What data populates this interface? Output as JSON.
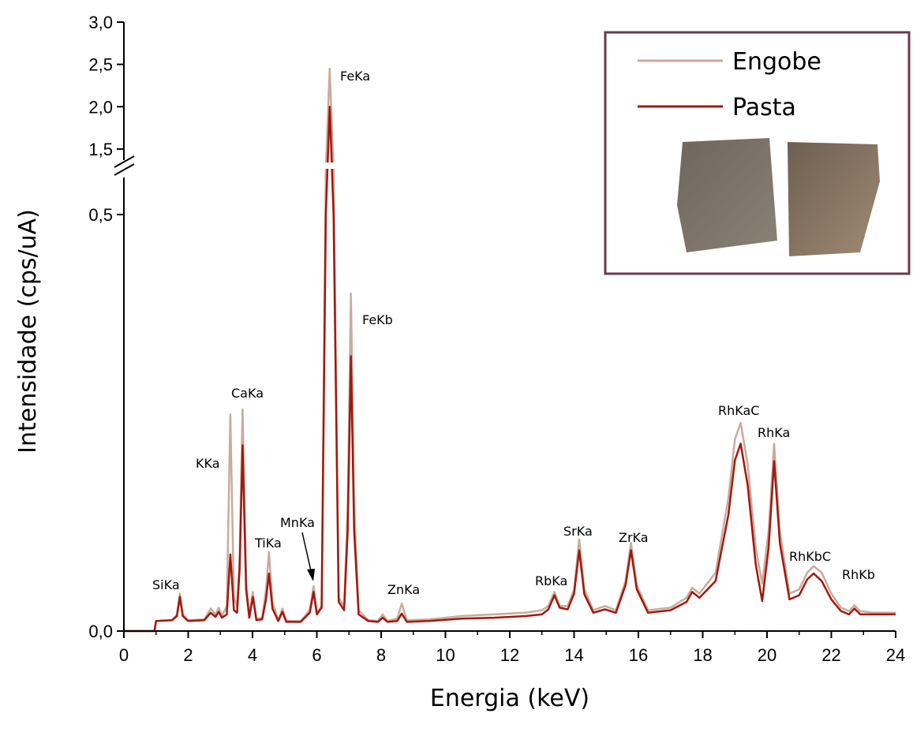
{
  "chart_data": {
    "type": "line",
    "xlabel": "Energia (keV)",
    "ylabel": "Intensidade (cps/uA)",
    "xlim": [
      0,
      24
    ],
    "xticks": [
      0,
      2,
      4,
      6,
      8,
      10,
      12,
      14,
      16,
      18,
      20,
      22,
      24
    ],
    "ylim": [
      0,
      3.0
    ],
    "ybreak": [
      0.554,
      1.35
    ],
    "yticks": [
      {
        "value": 0,
        "label": "0,0"
      },
      {
        "value": 0.5,
        "label": "0,5"
      },
      {
        "value": 1.5,
        "label": "1,5"
      },
      {
        "value": 2.0,
        "label": "2,0"
      },
      {
        "value": 2.5,
        "label": "2,5"
      },
      {
        "value": 3.0,
        "label": "3,0"
      }
    ],
    "annotations": [
      "SiKa",
      "KKa",
      "CaKa",
      "TiKa",
      "MnKa",
      "FeKa",
      "FeKb",
      "ZnKa",
      "RbKa",
      "SrKa",
      "ZrKa",
      "RhKaC",
      "RhKa",
      "RhKbC",
      "RhKb"
    ],
    "x": [
      0,
      0.95,
      1.0,
      1.5,
      1.65,
      1.74,
      1.83,
      2.0,
      2.5,
      2.7,
      2.85,
      2.95,
      3.05,
      3.2,
      3.31,
      3.42,
      3.52,
      3.6,
      3.69,
      3.8,
      3.9,
      4.01,
      4.12,
      4.3,
      4.42,
      4.51,
      4.62,
      4.8,
      4.93,
      5.05,
      5.5,
      5.78,
      5.9,
      6.0,
      6.15,
      6.28,
      6.4,
      6.52,
      6.68,
      6.85,
      6.96,
      7.06,
      7.16,
      7.3,
      7.6,
      7.9,
      8.05,
      8.2,
      8.5,
      8.64,
      8.8,
      9.5,
      10.5,
      11.5,
      12.5,
      13.0,
      13.2,
      13.39,
      13.55,
      13.8,
      14.0,
      14.16,
      14.32,
      14.6,
      14.96,
      15.3,
      15.6,
      15.77,
      15.95,
      16.3,
      17.0,
      17.5,
      17.67,
      17.9,
      18.4,
      18.8,
      19.0,
      19.18,
      19.4,
      19.65,
      19.85,
      20.05,
      20.22,
      20.4,
      20.7,
      21.0,
      21.25,
      21.45,
      21.7,
      22.0,
      22.3,
      22.55,
      22.72,
      22.9,
      23.3,
      24
    ],
    "series": [
      {
        "name": "Engobe",
        "color": "#c9ab9c",
        "values": [
          0,
          0,
          0.012,
          0.013,
          0.02,
          0.045,
          0.02,
          0.013,
          0.014,
          0.027,
          0.02,
          0.028,
          0.018,
          0.03,
          0.26,
          0.04,
          0.03,
          0.09,
          0.266,
          0.06,
          0.018,
          0.047,
          0.015,
          0.016,
          0.05,
          0.095,
          0.035,
          0.013,
          0.027,
          0.012,
          0.012,
          0.025,
          0.054,
          0.022,
          0.03,
          0.6,
          2.45,
          0.6,
          0.04,
          0.03,
          0.15,
          0.405,
          0.15,
          0.025,
          0.013,
          0.012,
          0.02,
          0.012,
          0.015,
          0.033,
          0.013,
          0.014,
          0.018,
          0.02,
          0.022,
          0.025,
          0.03,
          0.047,
          0.03,
          0.03,
          0.05,
          0.11,
          0.05,
          0.025,
          0.03,
          0.025,
          0.06,
          0.106,
          0.055,
          0.025,
          0.028,
          0.04,
          0.052,
          0.045,
          0.07,
          0.16,
          0.23,
          0.25,
          0.2,
          0.1,
          0.057,
          0.12,
          0.225,
          0.12,
          0.045,
          0.05,
          0.07,
          0.078,
          0.07,
          0.045,
          0.028,
          0.024,
          0.031,
          0.024,
          0.022,
          0.022
        ]
      },
      {
        "name": "Pasta",
        "color": "#a3170d",
        "values": [
          0,
          0,
          0.012,
          0.013,
          0.018,
          0.041,
          0.018,
          0.012,
          0.013,
          0.022,
          0.017,
          0.023,
          0.016,
          0.02,
          0.092,
          0.025,
          0.022,
          0.075,
          0.223,
          0.05,
          0.016,
          0.041,
          0.013,
          0.014,
          0.038,
          0.069,
          0.027,
          0.012,
          0.023,
          0.011,
          0.011,
          0.022,
          0.047,
          0.02,
          0.028,
          0.5,
          2.0,
          0.5,
          0.035,
          0.025,
          0.12,
          0.33,
          0.12,
          0.02,
          0.012,
          0.011,
          0.016,
          0.011,
          0.012,
          0.021,
          0.011,
          0.012,
          0.015,
          0.016,
          0.018,
          0.02,
          0.026,
          0.043,
          0.028,
          0.026,
          0.045,
          0.097,
          0.044,
          0.022,
          0.026,
          0.022,
          0.055,
          0.097,
          0.05,
          0.022,
          0.025,
          0.035,
          0.047,
          0.04,
          0.06,
          0.14,
          0.205,
          0.225,
          0.175,
          0.08,
          0.036,
          0.1,
          0.204,
          0.105,
          0.038,
          0.043,
          0.062,
          0.069,
          0.06,
          0.038,
          0.024,
          0.02,
          0.027,
          0.02,
          0.02,
          0.02
        ]
      }
    ],
    "legend": "upper right"
  }
}
